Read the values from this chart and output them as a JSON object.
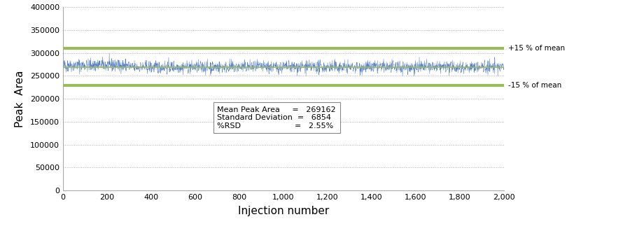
{
  "mean": 269162,
  "std": 6854,
  "rsd": "2.55%",
  "n_injections": 2000,
  "upper_bound": 309536,
  "lower_bound": 228788,
  "ylim": [
    0,
    400000
  ],
  "yticks": [
    0,
    50000,
    100000,
    150000,
    200000,
    250000,
    300000,
    350000,
    400000
  ],
  "xlim": [
    0,
    2000
  ],
  "xticks": [
    0,
    200,
    400,
    600,
    800,
    1000,
    1200,
    1400,
    1600,
    1800,
    2000
  ],
  "xlabel": "Injection number",
  "ylabel": "Peak  Area",
  "data_color": "#4472C4",
  "mean_line_color": "#9BBB59",
  "bound_line_color": "#9BBB59",
  "bg_color": "#FFFFFF",
  "grid_color": "#999999",
  "upper_label": "+15 % of mean",
  "lower_label": "-15 % of mean",
  "seed": 42
}
